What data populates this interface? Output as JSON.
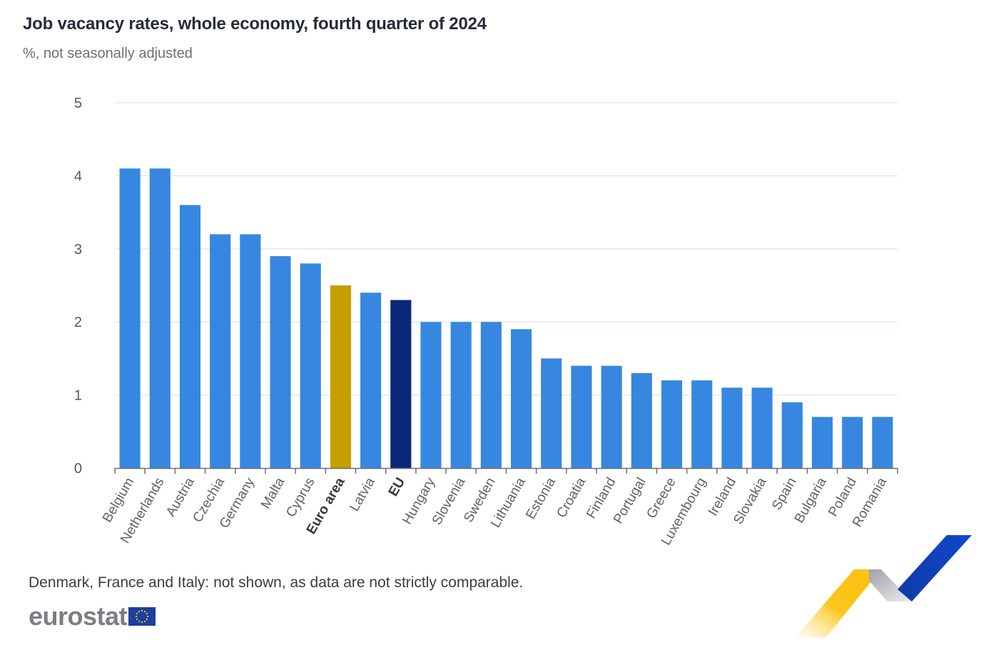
{
  "chart_data": {
    "type": "bar",
    "title": "Job vacancy rates, whole economy, fourth quarter of 2024",
    "subtitle": "%, not seasonally adjusted",
    "xlabel": "",
    "ylabel": "",
    "ylim": [
      0,
      5
    ],
    "yticks": [
      0,
      1,
      2,
      3,
      4,
      5
    ],
    "grid": true,
    "categories": [
      "Belgium",
      "Netherlands",
      "Austria",
      "Czechia",
      "Germany",
      "Malta",
      "Cyprus",
      "Euro area",
      "Latvia",
      "EU",
      "Hungary",
      "Slovenia",
      "Sweden",
      "Lithuania",
      "Estonia",
      "Croatia",
      "Finland",
      "Portugal",
      "Greece",
      "Luxembourg",
      "Ireland",
      "Slovakia",
      "Spain",
      "Bulgaria",
      "Poland",
      "Romania"
    ],
    "values": [
      4.1,
      4.1,
      3.6,
      3.2,
      3.2,
      2.9,
      2.8,
      2.5,
      2.4,
      2.3,
      2.0,
      2.0,
      2.0,
      1.9,
      1.5,
      1.4,
      1.4,
      1.3,
      1.2,
      1.2,
      1.1,
      1.1,
      0.9,
      0.7,
      0.7,
      0.7
    ],
    "highlight": {
      "Euro area": "#c59f00",
      "EU": "#0b2878"
    },
    "bold_categories": [
      "Euro area",
      "EU"
    ],
    "default_color": "#3787e0"
  },
  "footer": {
    "note": "Denmark, France and Italy: not shown, as data are not strictly comparable.",
    "logo_text": "eurostat"
  }
}
